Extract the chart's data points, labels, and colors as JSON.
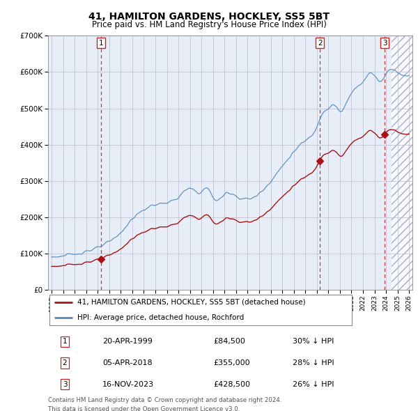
{
  "title": "41, HAMILTON GARDENS, HOCKLEY, SS5 5BT",
  "subtitle": "Price paid vs. HM Land Registry's House Price Index (HPI)",
  "legend_line1": "41, HAMILTON GARDENS, HOCKLEY, SS5 5BT (detached house)",
  "legend_line2": "HPI: Average price, detached house, Rochford",
  "footer1": "Contains HM Land Registry data © Crown copyright and database right 2024.",
  "footer2": "This data is licensed under the Open Government Licence v3.0.",
  "sales": [
    {
      "num": 1,
      "date": "20-APR-1999",
      "price": 84500,
      "pricef": "£84,500",
      "label": "30% ↓ HPI",
      "year": 1999.3
    },
    {
      "num": 2,
      "date": "05-APR-2018",
      "price": 355000,
      "pricef": "£355,000",
      "label": "28% ↓ HPI",
      "year": 2018.27
    },
    {
      "num": 3,
      "date": "16-NOV-2023",
      "price": 428500,
      "pricef": "£428,500",
      "label": "26% ↓ HPI",
      "year": 2023.88
    }
  ],
  "hpi_color": "#5588BB",
  "sale_color": "#AA1111",
  "vline_color": "#CC3333",
  "box_color": "#CC2222",
  "bg_color": "#E8EEF8",
  "grid_color": "#BBBBCC",
  "ylim": [
    0,
    700000
  ],
  "yticks": [
    0,
    100000,
    200000,
    300000,
    400000,
    500000,
    600000,
    700000
  ],
  "xlim_start": 1994.7,
  "xlim_end": 2026.3,
  "hatch_start": 2024.5
}
